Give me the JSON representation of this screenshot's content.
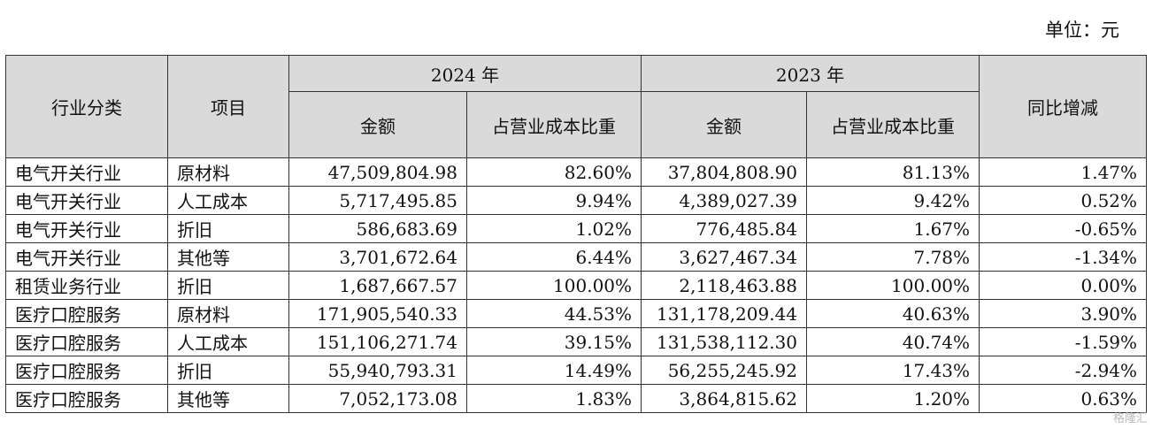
{
  "unit": "单位：元",
  "header": {
    "category": "行业分类",
    "item": "项目",
    "year2024": "2024 年",
    "year2023": "2023 年",
    "amount": "金额",
    "ratio": "占营业成本比重",
    "yoy": "同比增减"
  },
  "rows": [
    {
      "category": "电气开关行业",
      "item": "原材料",
      "amount2024": "47,509,804.98",
      "ratio2024": "82.60%",
      "amount2023": "37,804,808.90",
      "ratio2023": "81.13%",
      "yoy": "1.47%"
    },
    {
      "category": "电气开关行业",
      "item": "人工成本",
      "amount2024": "5,717,495.85",
      "ratio2024": "9.94%",
      "amount2023": "4,389,027.39",
      "ratio2023": "9.42%",
      "yoy": "0.52%"
    },
    {
      "category": "电气开关行业",
      "item": "折旧",
      "amount2024": "586,683.69",
      "ratio2024": "1.02%",
      "amount2023": "776,485.84",
      "ratio2023": "1.67%",
      "yoy": "-0.65%"
    },
    {
      "category": "电气开关行业",
      "item": "其他等",
      "amount2024": "3,701,672.64",
      "ratio2024": "6.44%",
      "amount2023": "3,627,467.34",
      "ratio2023": "7.78%",
      "yoy": "-1.34%"
    },
    {
      "category": "租赁业务行业",
      "item": "折旧",
      "amount2024": "1,687,667.57",
      "ratio2024": "100.00%",
      "amount2023": "2,118,463.88",
      "ratio2023": "100.00%",
      "yoy": "0.00%"
    },
    {
      "category": "医疗口腔服务",
      "item": "原材料",
      "amount2024": "171,905,540.33",
      "ratio2024": "44.53%",
      "amount2023": "131,178,209.44",
      "ratio2023": "40.63%",
      "yoy": "3.90%"
    },
    {
      "category": "医疗口腔服务",
      "item": "人工成本",
      "amount2024": "151,106,271.74",
      "ratio2024": "39.15%",
      "amount2023": "131,538,112.30",
      "ratio2023": "40.74%",
      "yoy": "-1.59%"
    },
    {
      "category": "医疗口腔服务",
      "item": "折旧",
      "amount2024": "55,940,793.31",
      "ratio2024": "14.49%",
      "amount2023": "56,255,245.92",
      "ratio2023": "17.43%",
      "yoy": "-2.94%"
    },
    {
      "category": "医疗口腔服务",
      "item": "其他等",
      "amount2024": "7,052,173.08",
      "ratio2024": "1.83%",
      "amount2023": "3,864,815.62",
      "ratio2023": "1.20%",
      "yoy": "0.63%"
    }
  ],
  "watermark": "格隆汇"
}
